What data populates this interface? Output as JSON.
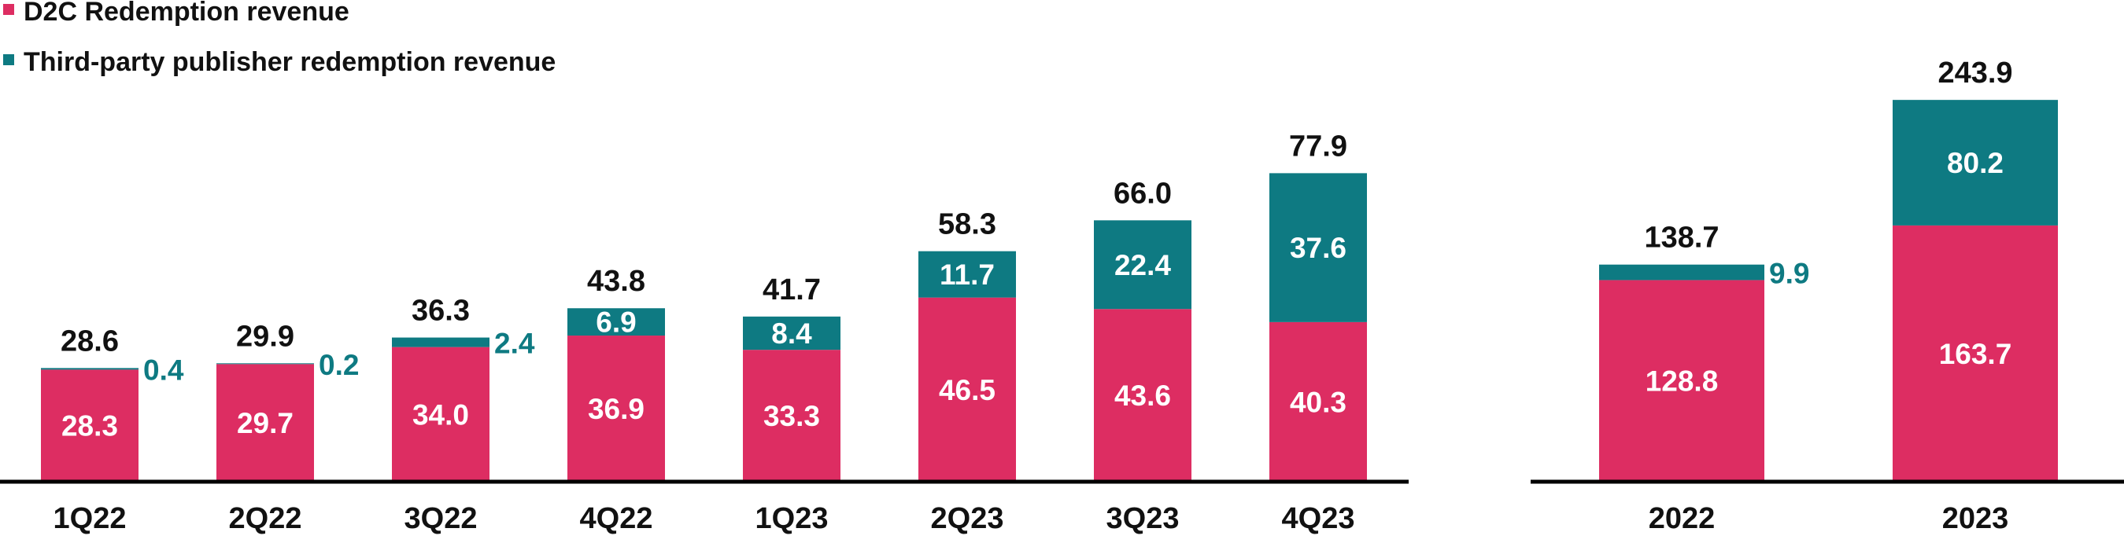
{
  "chart_data": [
    {
      "type": "bar",
      "stacked": true,
      "title": "",
      "xlabel": "",
      "ylabel": "",
      "ylim": [
        0,
        80
      ],
      "categories": [
        "1Q22",
        "2Q22",
        "3Q22",
        "4Q22",
        "1Q23",
        "2Q23",
        "3Q23",
        "4Q23"
      ],
      "series": [
        {
          "name": "D2C Redemption revenue",
          "color": "#DD2D62",
          "values": [
            28.3,
            29.7,
            34.0,
            36.9,
            33.3,
            46.5,
            43.6,
            40.3
          ],
          "labels": [
            "28.3",
            "29.7",
            "34.0",
            "36.9",
            "33.3",
            "46.5",
            "43.6",
            "40.3"
          ]
        },
        {
          "name": "Third-party publisher redemption revenue",
          "color": "#0E7A82",
          "values": [
            0.4,
            0.2,
            2.4,
            6.9,
            8.4,
            11.7,
            22.4,
            37.6
          ],
          "labels": [
            "0.4",
            "0.2",
            "2.4",
            "6.9",
            "8.4",
            "11.7",
            "22.4",
            "37.6"
          ]
        }
      ],
      "totals": [
        "28.6",
        "29.9",
        "36.3",
        "43.8",
        "41.7",
        "58.3",
        "66.0",
        "77.9"
      ]
    },
    {
      "type": "bar",
      "stacked": true,
      "title": "",
      "xlabel": "",
      "ylabel": "",
      "ylim": [
        0,
        250
      ],
      "categories": [
        "2022",
        "2023"
      ],
      "series": [
        {
          "name": "D2C Redemption revenue",
          "color": "#DD2D62",
          "values": [
            128.8,
            163.7
          ],
          "labels": [
            "128.8",
            "163.7"
          ]
        },
        {
          "name": "Third-party publisher redemption revenue",
          "color": "#0E7A82",
          "values": [
            9.9,
            80.2
          ],
          "labels": [
            "9.9",
            "80.2"
          ]
        }
      ],
      "totals": [
        "138.7",
        "243.9"
      ]
    }
  ],
  "legend": [
    {
      "label": "D2C Redemption revenue",
      "color": "#DD2D62"
    },
    {
      "label": "Third-party publisher redemption revenue",
      "color": "#0E7A82"
    }
  ]
}
